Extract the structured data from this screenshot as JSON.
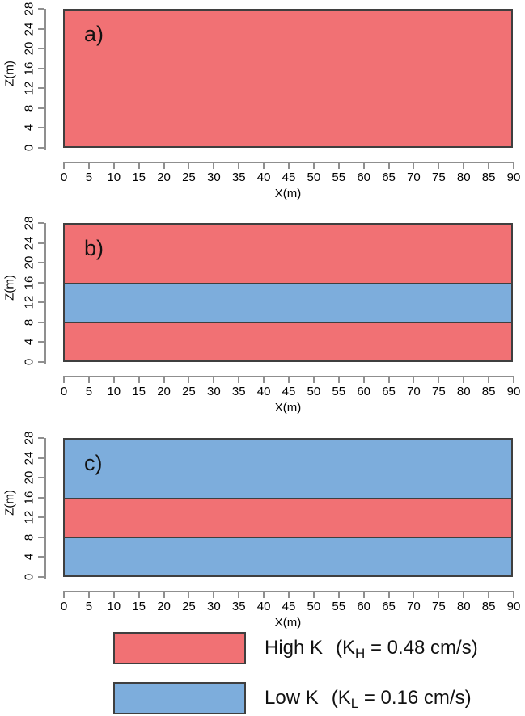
{
  "chart_data": {
    "type": "area",
    "title": "",
    "xlabel": "X(m)",
    "ylabel": "Z(m)",
    "xlim": [
      0,
      90
    ],
    "ylim": [
      0,
      28
    ],
    "grid": false,
    "legend_position": "bottom",
    "x_ticks": [
      0,
      5,
      10,
      15,
      20,
      25,
      30,
      35,
      40,
      45,
      50,
      55,
      60,
      65,
      70,
      75,
      80,
      85,
      90
    ],
    "y_ticks": [
      0,
      4,
      8,
      12,
      16,
      20,
      24,
      28
    ],
    "materials": {
      "high": {
        "name": "High K",
        "color": "#F17174",
        "k_value": "0.48 cm/s"
      },
      "low": {
        "name": "Low K",
        "color": "#7DADDC",
        "k_value": "0.16 cm/s"
      }
    },
    "panels": [
      {
        "label": "a)",
        "layers": [
          {
            "material": "high",
            "z_from": 0,
            "z_to": 28
          }
        ]
      },
      {
        "label": "b)",
        "layers": [
          {
            "material": "high",
            "z_from": 16,
            "z_to": 28
          },
          {
            "material": "low",
            "z_from": 8,
            "z_to": 16
          },
          {
            "material": "high",
            "z_from": 0,
            "z_to": 8
          }
        ]
      },
      {
        "label": "c)",
        "layers": [
          {
            "material": "low",
            "z_from": 16,
            "z_to": 28
          },
          {
            "material": "high",
            "z_from": 8,
            "z_to": 16
          },
          {
            "material": "low",
            "z_from": 0,
            "z_to": 8
          }
        ]
      }
    ],
    "legend": [
      {
        "material": "high",
        "label": "High K",
        "k_prefix": "(K",
        "k_sub": "H",
        "k_suffix": " = 0.48 cm/s)"
      },
      {
        "material": "low",
        "label": "Low K",
        "k_prefix": "(K",
        "k_sub": "L",
        "k_suffix": " = 0.16 cm/s)"
      }
    ]
  },
  "colors": {
    "axis": "#8f8f8f",
    "border": "#3f3f3f",
    "text": "#000000",
    "background": "#ffffff"
  }
}
